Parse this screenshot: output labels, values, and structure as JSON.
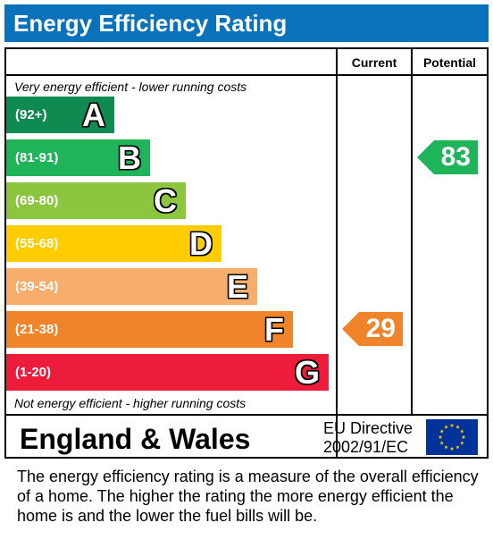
{
  "header": {
    "title": "Energy Efficiency Rating"
  },
  "columns": {
    "current": "Current",
    "potential": "Potential"
  },
  "notes": {
    "top": "Very energy efficient - lower running costs",
    "bottom": "Not energy efficient - higher running costs"
  },
  "chart_data": {
    "type": "bar",
    "title": "Energy Efficiency Rating",
    "bands": [
      {
        "letter": "A",
        "range": "(92+)",
        "color": "#0f8b51"
      },
      {
        "letter": "B",
        "range": "(81-91)",
        "color": "#20b45a"
      },
      {
        "letter": "C",
        "range": "(69-80)",
        "color": "#8cc63f"
      },
      {
        "letter": "D",
        "range": "(55-68)",
        "color": "#ffcc00"
      },
      {
        "letter": "E",
        "range": "(39-54)",
        "color": "#f7ad6b"
      },
      {
        "letter": "F",
        "range": "(21-38)",
        "color": "#f0842a"
      },
      {
        "letter": "G",
        "range": "(1-20)",
        "color": "#ed1c3a"
      }
    ],
    "current": {
      "value": 29,
      "band": "F",
      "color": "#f0842a"
    },
    "potential": {
      "value": 83,
      "band": "B",
      "color": "#20b45a"
    }
  },
  "footer": {
    "region": "England & Wales",
    "directive_line1": "EU Directive",
    "directive_line2": "2002/91/EC",
    "flag_icon": "eu-flag-icon",
    "flag_color": "#003399",
    "star_color": "#ffcc00"
  },
  "description": "The energy efficiency rating is a measure of the overall efficiency of a home.  The higher the rating the more energy efficient the home is and the lower the fuel bills will be."
}
